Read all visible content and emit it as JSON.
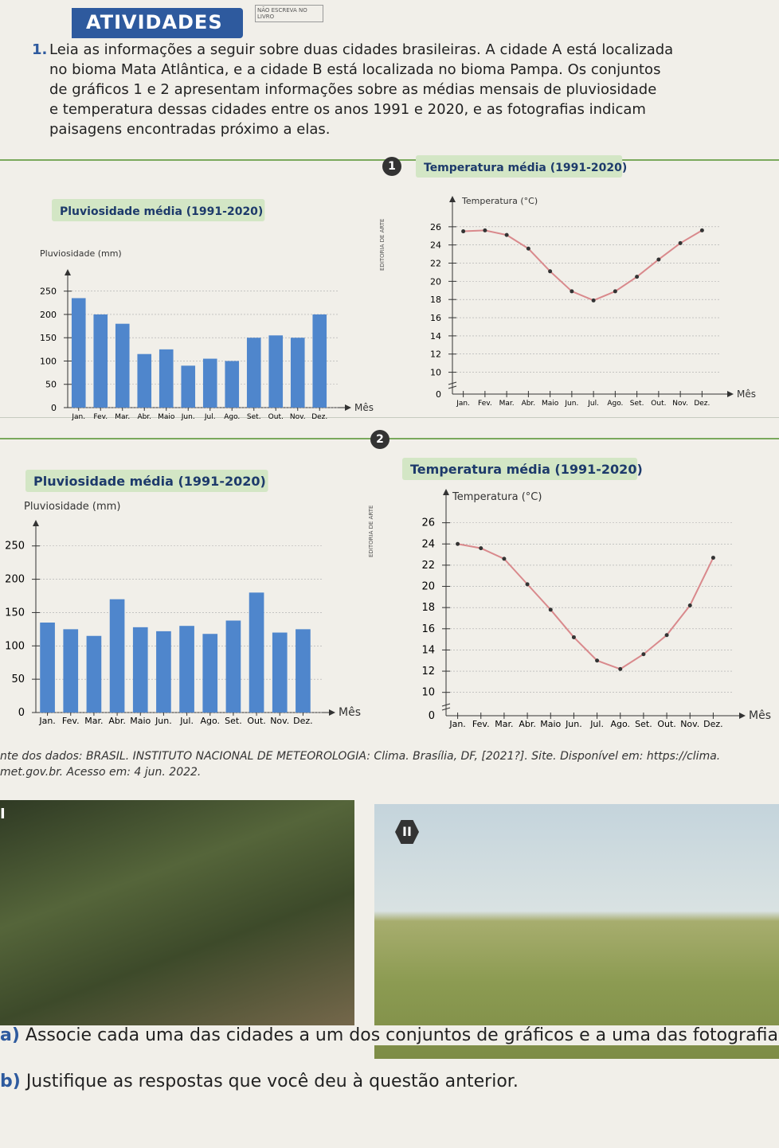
{
  "header": {
    "title": "ATIVIDADES",
    "stamp": "NÃO ESCREVA NO LIVRO"
  },
  "question": {
    "number": "1.",
    "lines": [
      "Leia as informações a seguir sobre duas cidades brasileiras. A cidade A está localizada",
      "no bioma Mata Atlântica, e a cidade B está localizada no bioma Pampa. Os conjuntos",
      "de gráficos 1 e 2 apresentam informações sobre as médias mensais de pluviosidade",
      "e temperatura dessas cidades entre os anos 1991 e 2020, e as fotografias indicam",
      "paisagens encontradas próximo a elas."
    ]
  },
  "groups": [
    {
      "label": "1"
    },
    {
      "label": "2"
    }
  ],
  "credit": "EDITORIA DE ARTE",
  "chart_data": [
    {
      "type": "bar",
      "title": "Pluviosidade média (1991-2020)",
      "y_label": "Pluviosidade (mm)",
      "x_label": "Mês",
      "categories": [
        "Jan.",
        "Fev.",
        "Mar.",
        "Abr.",
        "Maio",
        "Jun.",
        "Jul.",
        "Ago.",
        "Set.",
        "Out.",
        "Nov.",
        "Dez."
      ],
      "values": [
        235,
        200,
        180,
        115,
        125,
        90,
        105,
        100,
        150,
        155,
        150,
        200
      ],
      "color": "#4f86cc",
      "ylim": [
        0,
        270
      ],
      "yticks": [
        0,
        50,
        100,
        150,
        200,
        250
      ],
      "grid": true
    },
    {
      "type": "line",
      "title": "Temperatura média (1991-2020)",
      "y_label": "Temperatura (°C)",
      "x_label": "Mês",
      "origin_label": "0",
      "categories": [
        "Jan.",
        "Fev.",
        "Mar.",
        "Abr.",
        "Maio",
        "Jun.",
        "Jul.",
        "Ago.",
        "Set.",
        "Out.",
        "Nov.",
        "Dez."
      ],
      "values": [
        25.5,
        25.6,
        25.1,
        23.6,
        21.1,
        18.9,
        17.9,
        18.9,
        20.5,
        22.4,
        24.2,
        25.6
      ],
      "color": "#d9898c",
      "ylim": [
        9,
        28
      ],
      "yticks": [
        10,
        12,
        14,
        16,
        18,
        20,
        22,
        24,
        26
      ],
      "grid": true
    },
    {
      "type": "bar",
      "title": "Pluviosidade média (1991-2020)",
      "y_label": "Pluviosidade (mm)",
      "x_label": "Mês",
      "categories": [
        "Jan.",
        "Fev.",
        "Mar.",
        "Abr.",
        "Maio",
        "Jun.",
        "Jul.",
        "Ago.",
        "Set.",
        "Out.",
        "Nov.",
        "Dez."
      ],
      "values": [
        135,
        125,
        115,
        170,
        128,
        122,
        130,
        118,
        138,
        180,
        120,
        125
      ],
      "color": "#4f86cc",
      "ylim": [
        0,
        270
      ],
      "yticks": [
        0,
        50,
        100,
        150,
        200,
        250
      ],
      "grid": true
    },
    {
      "type": "line",
      "title": "Temperatura média (1991-2020)",
      "y_label": "Temperatura (°C)",
      "x_label": "Mês",
      "origin_label": "0",
      "categories": [
        "Jan.",
        "Fev.",
        "Mar.",
        "Abr.",
        "Maio",
        "Jun.",
        "Jul.",
        "Ago.",
        "Set.",
        "Out.",
        "Nov.",
        "Dez."
      ],
      "values": [
        24,
        23.6,
        22.6,
        20.2,
        17.8,
        15.2,
        13,
        12.2,
        13.6,
        15.4,
        18.2,
        22.7
      ],
      "color": "#d9898c",
      "ylim": [
        9,
        28
      ],
      "yticks": [
        10,
        12,
        14,
        16,
        18,
        20,
        22,
        24,
        26
      ],
      "grid": true
    }
  ],
  "source": [
    "nte dos dados: BRASIL. INSTITUTO NACIONAL DE METEOROLOGIA: Clima. Brasília, DF, [2021?]. Site. Disponível em: https://clima.",
    "met.gov.br. Acesso em: 4 jun. 2022."
  ],
  "photos": [
    {
      "label": "I"
    },
    {
      "label": "II"
    }
  ],
  "items": [
    {
      "letter": "a)",
      "text": "Associe cada uma das cidades a um dos conjuntos de gráficos e a uma das fotografias"
    },
    {
      "letter": "b)",
      "text": "Justifique as respostas que você deu à questão anterior."
    }
  ]
}
